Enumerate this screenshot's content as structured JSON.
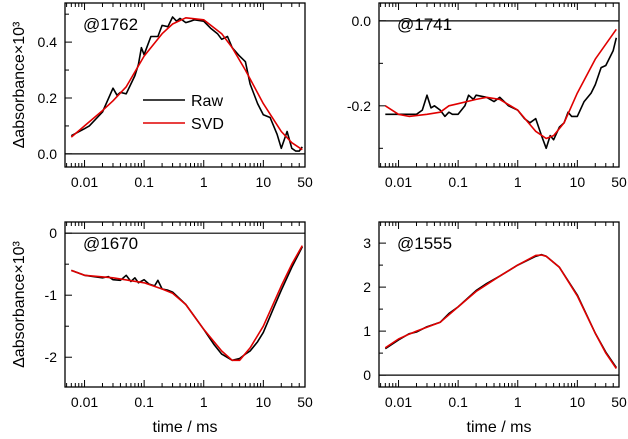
{
  "chart_data": [
    {
      "type": "line",
      "annotation": "@1762",
      "xlabel": "",
      "ylabel": "Δabsorbance×10³",
      "xscale": "log",
      "xlim": [
        0.0047,
        50
      ],
      "ylim": [
        -0.047,
        0.54
      ],
      "x_tick_labels": [
        "0.01",
        "0.1",
        "1",
        "10",
        "50"
      ],
      "x_ticks": [
        0.01,
        0.1,
        1,
        10,
        50
      ],
      "y_ticks": [
        0.0,
        0.2,
        0.4
      ],
      "y_tick_labels": [
        "0.0",
        "0.2",
        "0.4"
      ],
      "y_minor": [
        0.1,
        0.3,
        0.5
      ],
      "zero_line": true,
      "legend": {
        "placement": "center",
        "entries": [
          "Raw",
          "SVD"
        ]
      },
      "series": [
        {
          "name": "Raw",
          "color": "#000000",
          "x": [
            0.006,
            0.01,
            0.012,
            0.02,
            0.03,
            0.035,
            0.04,
            0.05,
            0.07,
            0.08,
            0.09,
            0.1,
            0.13,
            0.17,
            0.2,
            0.25,
            0.3,
            0.35,
            0.4,
            0.5,
            0.6,
            0.7,
            1,
            1.3,
            1.7,
            2,
            2.5,
            3,
            4,
            5,
            6,
            8,
            10,
            13,
            17,
            20,
            25,
            30,
            35,
            40,
            45
          ],
          "y": [
            0.065,
            0.09,
            0.1,
            0.15,
            0.235,
            0.21,
            0.22,
            0.215,
            0.28,
            0.32,
            0.38,
            0.355,
            0.42,
            0.42,
            0.46,
            0.455,
            0.49,
            0.475,
            0.485,
            0.47,
            0.475,
            0.48,
            0.475,
            0.45,
            0.43,
            0.41,
            0.42,
            0.38,
            0.35,
            0.33,
            0.25,
            0.18,
            0.14,
            0.13,
            0.07,
            0.02,
            0.08,
            0.02,
            0.01,
            0.01,
            0.025
          ]
        },
        {
          "name": "SVD",
          "color": "#e00000",
          "x": [
            0.006,
            0.01,
            0.02,
            0.03,
            0.05,
            0.1,
            0.2,
            0.3,
            0.5,
            1,
            2,
            3,
            5,
            10,
            20,
            30,
            45
          ],
          "y": [
            0.06,
            0.1,
            0.155,
            0.19,
            0.24,
            0.35,
            0.43,
            0.465,
            0.487,
            0.48,
            0.43,
            0.38,
            0.3,
            0.18,
            0.08,
            0.04,
            0.015
          ]
        }
      ]
    },
    {
      "type": "line",
      "annotation": "@1741",
      "xlabel": "",
      "ylabel": "",
      "xscale": "log",
      "xlim": [
        0.0047,
        50
      ],
      "ylim": [
        -0.344,
        0.042
      ],
      "x_tick_labels": [
        "0.01",
        "0.1",
        "1",
        "10",
        "50"
      ],
      "x_ticks": [
        0.01,
        0.1,
        1,
        10,
        50
      ],
      "y_ticks": [
        0.0,
        -0.2
      ],
      "y_tick_labels": [
        "0.0",
        "-0.2"
      ],
      "y_minor": [
        -0.1,
        -0.3
      ],
      "zero_line": true,
      "series": [
        {
          "name": "Raw",
          "color": "#000000",
          "x": [
            0.006,
            0.02,
            0.025,
            0.03,
            0.035,
            0.04,
            0.05,
            0.06,
            0.07,
            0.08,
            0.1,
            0.13,
            0.15,
            0.18,
            0.2,
            0.3,
            0.4,
            0.5,
            0.7,
            1,
            1.3,
            1.6,
            2,
            2.5,
            3,
            3.5,
            4,
            5,
            6,
            7,
            8,
            10,
            13,
            17,
            20,
            25,
            30,
            40,
            45
          ],
          "y": [
            -0.22,
            -0.22,
            -0.21,
            -0.175,
            -0.205,
            -0.2,
            -0.21,
            -0.225,
            -0.215,
            -0.22,
            -0.22,
            -0.2,
            -0.175,
            -0.185,
            -0.175,
            -0.18,
            -0.19,
            -0.18,
            -0.2,
            -0.21,
            -0.23,
            -0.24,
            -0.23,
            -0.27,
            -0.3,
            -0.27,
            -0.28,
            -0.25,
            -0.24,
            -0.215,
            -0.225,
            -0.225,
            -0.19,
            -0.17,
            -0.15,
            -0.11,
            -0.105,
            -0.07,
            -0.04
          ]
        },
        {
          "name": "SVD",
          "color": "#e00000",
          "x": [
            0.006,
            0.01,
            0.015,
            0.03,
            0.05,
            0.07,
            0.1,
            0.2,
            0.3,
            0.5,
            1,
            2,
            3,
            4,
            6,
            10,
            20,
            45
          ],
          "y": [
            -0.2,
            -0.22,
            -0.225,
            -0.22,
            -0.215,
            -0.2,
            -0.195,
            -0.185,
            -0.18,
            -0.185,
            -0.21,
            -0.26,
            -0.277,
            -0.27,
            -0.24,
            -0.17,
            -0.09,
            -0.02
          ]
        }
      ]
    },
    {
      "type": "line",
      "annotation": "@1670",
      "xlabel": "time / ms",
      "ylabel": "Δabsorbance×10³",
      "xscale": "log",
      "xlim": [
        0.0047,
        50
      ],
      "ylim": [
        -2.48,
        0.18
      ],
      "x_tick_labels": [
        "0.01",
        "0.1",
        "1",
        "10",
        "50"
      ],
      "x_ticks": [
        0.01,
        0.1,
        1,
        10,
        50
      ],
      "y_ticks": [
        0,
        -1,
        -2
      ],
      "y_tick_labels": [
        "0",
        "-1",
        "-2"
      ],
      "y_minor": [
        -0.5,
        -1.5
      ],
      "zero_line": true,
      "series": [
        {
          "name": "Raw",
          "color": "#000000",
          "x": [
            0.006,
            0.01,
            0.02,
            0.025,
            0.03,
            0.04,
            0.05,
            0.06,
            0.07,
            0.08,
            0.1,
            0.12,
            0.15,
            0.17,
            0.2,
            0.25,
            0.3,
            0.5,
            1,
            1.5,
            2,
            3,
            4,
            5,
            6,
            8,
            10,
            15,
            20,
            30,
            45
          ],
          "y": [
            -0.6,
            -0.68,
            -0.72,
            -0.7,
            -0.75,
            -0.76,
            -0.68,
            -0.78,
            -0.72,
            -0.8,
            -0.75,
            -0.82,
            -0.85,
            -0.76,
            -0.9,
            -0.92,
            -0.95,
            -1.15,
            -1.55,
            -1.8,
            -1.95,
            -2.05,
            -2.02,
            -1.95,
            -1.9,
            -1.75,
            -1.6,
            -1.2,
            -0.92,
            -0.55,
            -0.22
          ]
        },
        {
          "name": "SVD",
          "color": "#e00000",
          "x": [
            0.006,
            0.01,
            0.03,
            0.1,
            0.2,
            0.3,
            0.5,
            1,
            2,
            3,
            4,
            6,
            10,
            20,
            30,
            45
          ],
          "y": [
            -0.6,
            -0.68,
            -0.72,
            -0.8,
            -0.9,
            -0.97,
            -1.15,
            -1.55,
            -1.9,
            -2.05,
            -2.05,
            -1.85,
            -1.5,
            -0.85,
            -0.5,
            -0.2
          ]
        }
      ]
    },
    {
      "type": "line",
      "annotation": "@1555",
      "xlabel": "time / ms",
      "ylabel": "",
      "xscale": "log",
      "xlim": [
        0.0047,
        50
      ],
      "ylim": [
        -0.27,
        3.48
      ],
      "x_tick_labels": [
        "0.01",
        "0.1",
        "1",
        "10",
        "50"
      ],
      "x_ticks": [
        0.01,
        0.1,
        1,
        10,
        50
      ],
      "y_ticks": [
        0,
        1,
        2,
        3
      ],
      "y_tick_labels": [
        "0",
        "1",
        "2",
        "3"
      ],
      "y_minor": [
        0.5,
        1.5,
        2.5
      ],
      "zero_line": true,
      "series": [
        {
          "name": "Raw",
          "color": "#000000",
          "x": [
            0.006,
            0.01,
            0.015,
            0.02,
            0.03,
            0.05,
            0.07,
            0.1,
            0.2,
            0.3,
            0.5,
            1,
            2,
            2.5,
            3,
            5,
            10,
            20,
            30,
            45
          ],
          "y": [
            0.6,
            0.8,
            0.94,
            0.98,
            1.1,
            1.2,
            1.4,
            1.55,
            1.92,
            2.08,
            2.25,
            2.5,
            2.7,
            2.74,
            2.7,
            2.45,
            1.82,
            0.95,
            0.52,
            0.17
          ]
        },
        {
          "name": "SVD",
          "color": "#e00000",
          "x": [
            0.006,
            0.01,
            0.015,
            0.02,
            0.05,
            0.1,
            0.2,
            0.5,
            1,
            2,
            2.5,
            3,
            5,
            10,
            20,
            30,
            45
          ],
          "y": [
            0.62,
            0.82,
            0.93,
            1.0,
            1.2,
            1.55,
            1.9,
            2.25,
            2.5,
            2.72,
            2.73,
            2.7,
            2.45,
            1.8,
            0.95,
            0.5,
            0.15
          ]
        }
      ]
    }
  ]
}
